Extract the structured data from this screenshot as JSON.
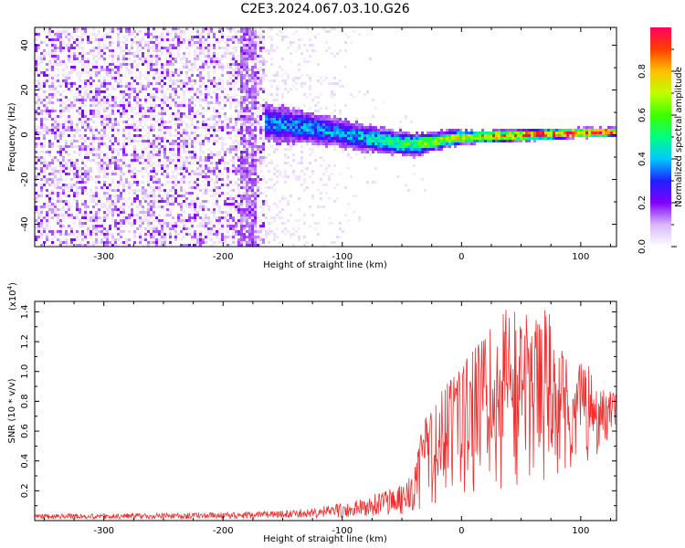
{
  "figure_title": "C2E3.2024.067.03.10.G26",
  "colors": {
    "snr_line": "#f03030",
    "axis": "#000000"
  },
  "chart_data": [
    {
      "type": "heatmap",
      "title": "C2E3.2024.067.03.10.G26",
      "xlabel": "Height of straight line (km)",
      "ylabel": "Frequency (Hz)",
      "xlim": [
        -358,
        130
      ],
      "ylim": [
        -50,
        48
      ],
      "xticks": [
        -300,
        -200,
        -100,
        0,
        100
      ],
      "yticks": [
        -40,
        -20,
        0,
        20,
        40
      ],
      "colorbar": {
        "label": "Normalized spectral amplitude",
        "range": [
          0,
          1
        ],
        "ticks": [
          "0.0",
          "0.2",
          "0.4",
          "0.6",
          "0.8"
        ],
        "tick_values": [
          0.0,
          0.2,
          0.4,
          0.6,
          0.8
        ],
        "colormap": [
          "#ffffff",
          "#d8b8f8",
          "#8000ff",
          "#2020ff",
          "#00c8ff",
          "#00ff80",
          "#40ff00",
          "#c0ff00",
          "#ffc000",
          "#ff4000",
          "#ff0060"
        ]
      },
      "features": {
        "noise_region_x": [
          -358,
          -165
        ],
        "noise_density_fade_x": [
          -170,
          -75
        ],
        "signal_start_x": -165,
        "signal_centerline": {
          "x": [
            -165,
            -120,
            -80,
            -40,
            -10,
            30,
            80,
            130
          ],
          "y": [
            6,
            3,
            -1,
            -4,
            -1,
            0,
            1,
            2
          ]
        },
        "signal_halfwidth": {
          "x": [
            -165,
            -100,
            -40,
            0,
            130
          ],
          "y": [
            8,
            6,
            5,
            3,
            2
          ]
        },
        "signal_peak_amplitude": {
          "x": [
            -165,
            -100,
            -50,
            0,
            60,
            130
          ],
          "y": [
            0.35,
            0.38,
            0.5,
            0.72,
            0.88,
            0.92
          ]
        }
      }
    },
    {
      "type": "line",
      "xlabel": "Height of straight line (km)",
      "ylabel": "SNR (10 * v/v)",
      "scale_label": "(x10",
      "scale_exponent": "4",
      "scale_suffix": ")",
      "xlim": [
        -358,
        130
      ],
      "ylim": [
        0,
        1.47
      ],
      "xticks": [
        -300,
        -200,
        -100,
        0,
        100
      ],
      "yticks": [
        0.2,
        0.4,
        0.6,
        0.8,
        1.0,
        1.2,
        1.4
      ],
      "series": [
        {
          "name": "SNR",
          "envelope": {
            "x": [
              -358,
              -250,
              -170,
              -130,
              -100,
              -80,
              -60,
              -50,
              -40,
              -35,
              -30,
              -20,
              -10,
              0,
              10,
              20,
              30,
              40,
              50,
              60,
              70,
              80,
              90,
              100,
              110,
              118,
              125,
              130
            ],
            "upper": [
              0.045,
              0.05,
              0.06,
              0.08,
              0.12,
              0.16,
              0.22,
              0.25,
              0.32,
              0.55,
              0.72,
              0.85,
              0.95,
              1.05,
              1.15,
              1.25,
              1.35,
              1.45,
              1.4,
              1.3,
              1.45,
              1.2,
              1.05,
              1.1,
              1.0,
              0.95,
              0.9,
              0.85
            ],
            "lower": [
              0.01,
              0.01,
              0.015,
              0.02,
              0.02,
              0.03,
              0.04,
              0.04,
              0.05,
              0.06,
              0.07,
              0.08,
              0.1,
              0.12,
              0.15,
              0.18,
              0.2,
              0.22,
              0.25,
              0.26,
              0.25,
              0.3,
              0.32,
              0.35,
              0.38,
              0.5,
              0.55,
              0.6
            ]
          }
        }
      ]
    }
  ]
}
